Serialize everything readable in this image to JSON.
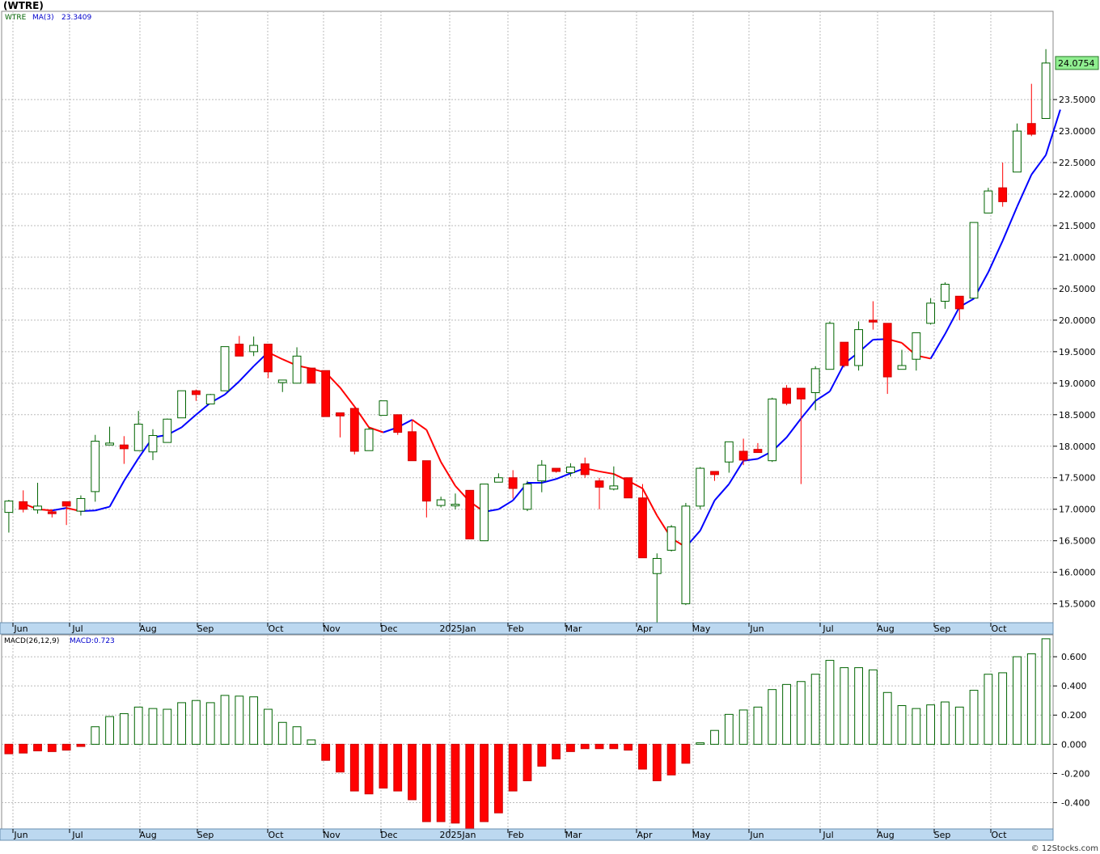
{
  "header": {
    "symbol_title": "(WTRE)"
  },
  "copyright": "© 12Stocks.com",
  "chart_data": [
    {
      "type": "candlestick",
      "legend": {
        "symbol": "WTRE",
        "ma_label": "MA(3)",
        "ma_value": "23.3409"
      },
      "last_price_label": "24.0754",
      "y_ticks": [
        "15.5000",
        "16.0000",
        "16.5000",
        "17.0000",
        "17.5000",
        "18.0000",
        "18.5000",
        "19.0000",
        "19.5000",
        "20.0000",
        "20.5000",
        "21.0000",
        "21.5000",
        "22.0000",
        "22.5000",
        "23.0000",
        "23.5000"
      ],
      "ylim": [
        15.2,
        24.9
      ],
      "x_labels": [
        "Jun",
        "Jul",
        "Aug",
        "Sep",
        "Oct",
        "Nov",
        "Dec",
        "2025Jan",
        "Feb",
        "Mar",
        "Apr",
        "May",
        "Jun",
        "Jul",
        "Aug",
        "Sep",
        "Oct"
      ],
      "colors": {
        "up": "#006400",
        "down": "#ff0000",
        "ma_up": "#0000ff",
        "ma_down": "#ff0000",
        "panel_band": "#bcd8f0"
      },
      "candles": [
        {
          "o": 16.95,
          "h": 17.15,
          "l": 16.63,
          "c": 17.13
        },
        {
          "o": 17.12,
          "h": 17.3,
          "l": 16.95,
          "c": 17.0
        },
        {
          "o": 16.99,
          "h": 17.42,
          "l": 16.93,
          "c": 17.05
        },
        {
          "o": 16.96,
          "h": 17.0,
          "l": 16.87,
          "c": 16.93
        },
        {
          "o": 17.12,
          "h": 17.12,
          "l": 16.75,
          "c": 17.05
        },
        {
          "o": 16.97,
          "h": 17.22,
          "l": 16.9,
          "c": 17.17
        },
        {
          "o": 17.28,
          "h": 18.18,
          "l": 17.12,
          "c": 18.08
        },
        {
          "o": 18.02,
          "h": 18.31,
          "l": 18.02,
          "c": 18.05
        },
        {
          "o": 18.02,
          "h": 18.16,
          "l": 17.72,
          "c": 17.96
        },
        {
          "o": 17.93,
          "h": 18.56,
          "l": 17.93,
          "c": 18.35
        },
        {
          "o": 17.91,
          "h": 18.27,
          "l": 17.78,
          "c": 18.17
        },
        {
          "o": 18.06,
          "h": 18.44,
          "l": 18.06,
          "c": 18.43
        },
        {
          "o": 18.45,
          "h": 18.88,
          "l": 18.45,
          "c": 18.88
        },
        {
          "o": 18.88,
          "h": 18.9,
          "l": 18.72,
          "c": 18.82
        },
        {
          "o": 18.67,
          "h": 18.83,
          "l": 18.67,
          "c": 18.82
        },
        {
          "o": 18.88,
          "h": 19.58,
          "l": 18.88,
          "c": 19.58
        },
        {
          "o": 19.62,
          "h": 19.75,
          "l": 19.43,
          "c": 19.43
        },
        {
          "o": 19.5,
          "h": 19.74,
          "l": 19.43,
          "c": 19.6
        },
        {
          "o": 19.62,
          "h": 19.62,
          "l": 19.08,
          "c": 19.18
        },
        {
          "o": 19.01,
          "h": 19.05,
          "l": 18.86,
          "c": 19.05
        },
        {
          "o": 19.0,
          "h": 19.57,
          "l": 19.0,
          "c": 19.43
        },
        {
          "o": 19.24,
          "h": 19.24,
          "l": 19.0,
          "c": 19.0
        },
        {
          "o": 19.2,
          "h": 19.2,
          "l": 18.47,
          "c": 18.47
        },
        {
          "o": 18.53,
          "h": 18.53,
          "l": 18.14,
          "c": 18.48
        },
        {
          "o": 18.6,
          "h": 18.6,
          "l": 17.87,
          "c": 17.92
        },
        {
          "o": 17.93,
          "h": 18.3,
          "l": 17.93,
          "c": 18.27
        },
        {
          "o": 18.49,
          "h": 18.72,
          "l": 18.49,
          "c": 18.72
        },
        {
          "o": 18.5,
          "h": 18.5,
          "l": 18.18,
          "c": 18.22
        },
        {
          "o": 18.23,
          "h": 18.4,
          "l": 17.77,
          "c": 17.77
        },
        {
          "o": 17.77,
          "h": 17.77,
          "l": 16.87,
          "c": 17.13
        },
        {
          "o": 17.06,
          "h": 17.2,
          "l": 17.03,
          "c": 17.15
        },
        {
          "o": 17.08,
          "h": 17.25,
          "l": 17.0,
          "c": 17.08
        },
        {
          "o": 17.3,
          "h": 17.3,
          "l": 16.53,
          "c": 16.53
        },
        {
          "o": 16.5,
          "h": 17.4,
          "l": 16.5,
          "c": 17.4
        },
        {
          "o": 17.43,
          "h": 17.57,
          "l": 17.43,
          "c": 17.5
        },
        {
          "o": 17.5,
          "h": 17.62,
          "l": 17.17,
          "c": 17.33
        },
        {
          "o": 17.0,
          "h": 17.45,
          "l": 16.97,
          "c": 17.4
        },
        {
          "o": 17.45,
          "h": 17.78,
          "l": 17.27,
          "c": 17.7
        },
        {
          "o": 17.65,
          "h": 17.65,
          "l": 17.58,
          "c": 17.6
        },
        {
          "o": 17.58,
          "h": 17.73,
          "l": 17.52,
          "c": 17.67
        },
        {
          "o": 17.72,
          "h": 17.82,
          "l": 17.5,
          "c": 17.55
        },
        {
          "o": 17.45,
          "h": 17.5,
          "l": 17.0,
          "c": 17.35
        },
        {
          "o": 17.32,
          "h": 17.68,
          "l": 17.3,
          "c": 17.37
        },
        {
          "o": 17.5,
          "h": 17.5,
          "l": 17.18,
          "c": 17.18
        },
        {
          "o": 17.18,
          "h": 17.4,
          "l": 16.23,
          "c": 16.23
        },
        {
          "o": 15.98,
          "h": 16.3,
          "l": 15.2,
          "c": 16.22
        },
        {
          "o": 16.35,
          "h": 16.75,
          "l": 16.33,
          "c": 16.72
        },
        {
          "o": 15.5,
          "h": 17.1,
          "l": 15.48,
          "c": 17.05
        },
        {
          "o": 17.05,
          "h": 17.67,
          "l": 17.0,
          "c": 17.65
        },
        {
          "o": 17.6,
          "h": 17.6,
          "l": 17.45,
          "c": 17.55
        },
        {
          "o": 17.75,
          "h": 18.07,
          "l": 17.58,
          "c": 18.07
        },
        {
          "o": 17.92,
          "h": 18.12,
          "l": 17.7,
          "c": 17.78
        },
        {
          "o": 17.95,
          "h": 18.05,
          "l": 17.9,
          "c": 17.9
        },
        {
          "o": 17.77,
          "h": 18.77,
          "l": 17.75,
          "c": 18.75
        },
        {
          "o": 18.92,
          "h": 18.97,
          "l": 18.65,
          "c": 18.68
        },
        {
          "o": 18.92,
          "h": 18.92,
          "l": 17.4,
          "c": 18.75
        },
        {
          "o": 18.85,
          "h": 19.27,
          "l": 18.57,
          "c": 19.23
        },
        {
          "o": 19.22,
          "h": 19.98,
          "l": 19.22,
          "c": 19.95
        },
        {
          "o": 19.65,
          "h": 19.65,
          "l": 19.25,
          "c": 19.28
        },
        {
          "o": 19.28,
          "h": 19.98,
          "l": 19.2,
          "c": 19.85
        },
        {
          "o": 20.0,
          "h": 20.3,
          "l": 19.85,
          "c": 19.97
        },
        {
          "o": 19.95,
          "h": 19.95,
          "l": 18.83,
          "c": 19.1
        },
        {
          "o": 19.22,
          "h": 19.53,
          "l": 19.22,
          "c": 19.28
        },
        {
          "o": 19.38,
          "h": 19.8,
          "l": 19.2,
          "c": 19.8
        },
        {
          "o": 19.95,
          "h": 20.35,
          "l": 19.93,
          "c": 20.27
        },
        {
          "o": 20.3,
          "h": 20.6,
          "l": 20.18,
          "c": 20.57
        },
        {
          "o": 20.38,
          "h": 20.38,
          "l": 20.0,
          "c": 20.18
        },
        {
          "o": 20.35,
          "h": 21.55,
          "l": 20.35,
          "c": 21.55
        },
        {
          "o": 21.7,
          "h": 22.1,
          "l": 21.7,
          "c": 22.05
        },
        {
          "o": 22.1,
          "h": 22.5,
          "l": 21.8,
          "c": 21.88
        },
        {
          "o": 22.35,
          "h": 23.12,
          "l": 22.35,
          "c": 23.0
        },
        {
          "o": 23.12,
          "h": 23.75,
          "l": 22.92,
          "c": 22.95
        },
        {
          "o": 23.2,
          "h": 24.3,
          "l": 23.2,
          "c": 24.08
        }
      ],
      "ma3": [
        17.09,
        17.0,
        16.98,
        17.02,
        16.97,
        16.98,
        17.04,
        17.45,
        17.81,
        18.14,
        18.18,
        18.3,
        18.5,
        18.69,
        18.82,
        19.03,
        19.27,
        19.49,
        19.38,
        19.28,
        19.23,
        19.17,
        18.93,
        18.63,
        18.3,
        18.22,
        18.3,
        18.42,
        18.26,
        17.75,
        17.37,
        17.12,
        16.96,
        17.0,
        17.14,
        17.42,
        17.42,
        17.48,
        17.57,
        17.65,
        17.6,
        17.56,
        17.45,
        17.33,
        16.9,
        16.54,
        16.4,
        16.66,
        17.14,
        17.4,
        17.77,
        17.8,
        17.92,
        18.14,
        18.44,
        18.72,
        18.87,
        19.31,
        19.49,
        19.69,
        19.7,
        19.64,
        19.44,
        19.39,
        19.78,
        20.21,
        20.34,
        20.76,
        21.26,
        21.8,
        22.31,
        22.62,
        23.34
      ]
    },
    {
      "type": "bar",
      "legend": {
        "name": "MACD(26,12,9)",
        "value_label": "MACD:0.723"
      },
      "y_ticks": [
        "-0.400",
        "-0.200",
        "0.000",
        "0.200",
        "0.400",
        "0.600"
      ],
      "ylim": [
        -0.58,
        0.75
      ],
      "x_labels": [
        "Jun",
        "Jul",
        "Aug",
        "Sep",
        "Oct",
        "Nov",
        "Dec",
        "2025Jan",
        "Feb",
        "Mar",
        "Apr",
        "May",
        "Jun",
        "Jul",
        "Aug",
        "Sep",
        "Oct"
      ],
      "values": [
        -0.065,
        -0.06,
        -0.045,
        -0.05,
        -0.04,
        -0.015,
        0.12,
        0.19,
        0.21,
        0.255,
        0.245,
        0.24,
        0.285,
        0.3,
        0.285,
        0.335,
        0.33,
        0.325,
        0.24,
        0.15,
        0.12,
        0.03,
        -0.11,
        -0.19,
        -0.32,
        -0.34,
        -0.3,
        -0.32,
        -0.38,
        -0.53,
        -0.53,
        -0.54,
        -0.58,
        -0.53,
        -0.47,
        -0.32,
        -0.25,
        -0.15,
        -0.1,
        -0.05,
        -0.03,
        -0.03,
        -0.03,
        -0.04,
        -0.17,
        -0.25,
        -0.21,
        -0.13,
        0.01,
        0.095,
        0.205,
        0.235,
        0.255,
        0.375,
        0.41,
        0.43,
        0.48,
        0.575,
        0.525,
        0.525,
        0.51,
        0.355,
        0.265,
        0.245,
        0.27,
        0.29,
        0.255,
        0.37,
        0.48,
        0.49,
        0.6,
        0.62,
        0.723
      ]
    }
  ]
}
